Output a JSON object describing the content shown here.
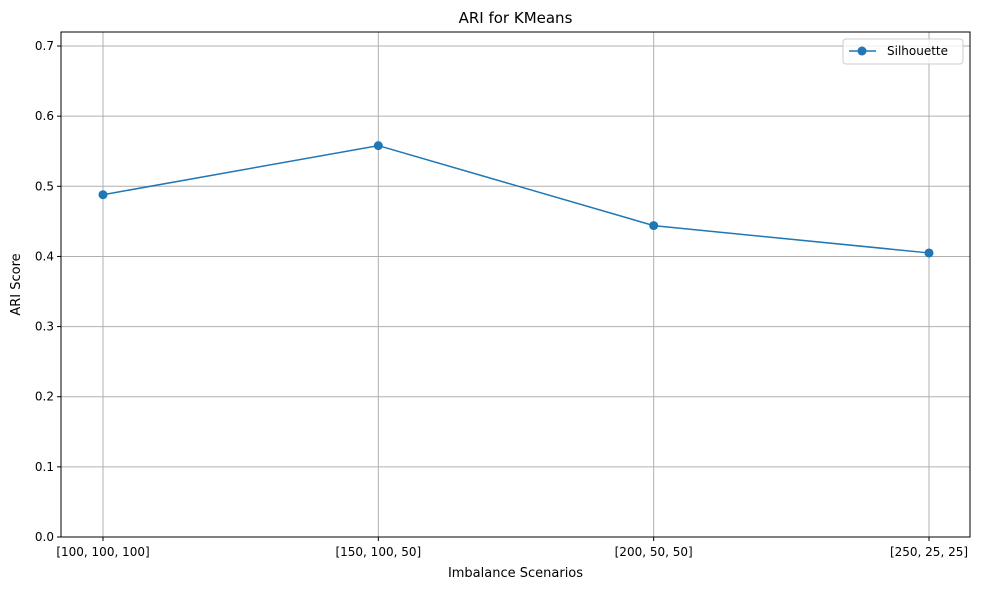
{
  "chart_data": {
    "type": "line",
    "title": "ARI for KMeans",
    "xlabel": "Imbalance Scenarios",
    "ylabel": "ARI Score",
    "categories": [
      "[100, 100, 100]",
      "[150, 100, 50]",
      "[200, 50, 50]",
      "[250, 25, 25]"
    ],
    "series": [
      {
        "name": "Silhouette",
        "values": [
          0.488,
          0.558,
          0.444,
          0.405
        ],
        "color": "#1f77b4",
        "marker": "circle"
      }
    ],
    "ylim": [
      0,
      0.72
    ],
    "yticks": [
      "0.0",
      "0.1",
      "0.2",
      "0.3",
      "0.4",
      "0.5",
      "0.6",
      "0.7"
    ],
    "grid": true,
    "legend": "top-right"
  }
}
